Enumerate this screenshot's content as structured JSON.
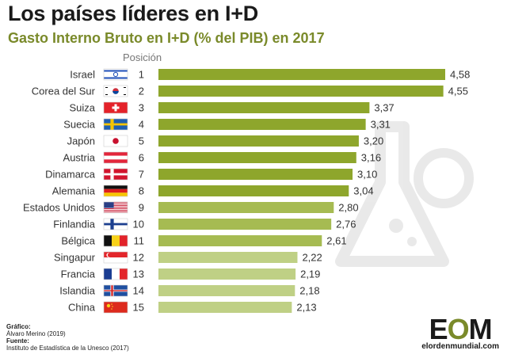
{
  "title": "Los países líderes en I+D",
  "subtitle": "Gasto Interno Bruto en I+D (% del PIB) en 2017",
  "position_header": "Posición",
  "chart_data": {
    "type": "bar",
    "orientation": "horizontal",
    "categories": [
      "Israel",
      "Corea del Sur",
      "Suiza",
      "Suecia",
      "Japón",
      "Austria",
      "Dinamarca",
      "Alemania",
      "Estados Unidos",
      "Finlandia",
      "Bélgica",
      "Singapur",
      "Francia",
      "Islandia",
      "China"
    ],
    "ranks": [
      "1",
      "2",
      "3",
      "4",
      "5",
      "6",
      "7",
      "8",
      "9",
      "10",
      "11",
      "12",
      "13",
      "14",
      "15"
    ],
    "values": [
      4.58,
      4.55,
      3.37,
      3.31,
      3.2,
      3.16,
      3.1,
      3.04,
      2.8,
      2.76,
      2.61,
      2.22,
      2.19,
      2.18,
      2.13
    ],
    "value_labels": [
      "4,58",
      "4,55",
      "3,37",
      "3,31",
      "3,20",
      "3,16",
      "3,10",
      "3,04",
      "2,80",
      "2,76",
      "2,61",
      "2,22",
      "2,19",
      "2,18",
      "2,13"
    ],
    "xlim": [
      0,
      4.58
    ],
    "bar_colors": [
      "#8ea62c",
      "#8ea62c",
      "#8ea62c",
      "#8ea62c",
      "#8ea62c",
      "#8ea62c",
      "#8ea62c",
      "#8ea62c",
      "#a6bb52",
      "#a6bb52",
      "#a6bb52",
      "#bfd085",
      "#bfd085",
      "#bfd085",
      "#bfd085"
    ],
    "flags": [
      "flag-israel-icon",
      "flag-south-korea-icon",
      "flag-switzerland-icon",
      "flag-sweden-icon",
      "flag-japan-icon",
      "flag-austria-icon",
      "flag-denmark-icon",
      "flag-germany-icon",
      "flag-usa-icon",
      "flag-finland-icon",
      "flag-belgium-icon",
      "flag-singapore-icon",
      "flag-france-icon",
      "flag-iceland-icon",
      "flag-china-icon"
    ],
    "grid": false,
    "legend": "none"
  },
  "credits": {
    "graphic_label": "Gráfico:",
    "graphic_author": "Álvaro Merino (2019)",
    "source_label": "Fuente:",
    "source_text": "Instituto de Estadística de la Unesco (2017)"
  },
  "logo": {
    "mark_e": "E",
    "mark_o": "O",
    "mark_m": "M",
    "site": "elordenmundial.com"
  }
}
